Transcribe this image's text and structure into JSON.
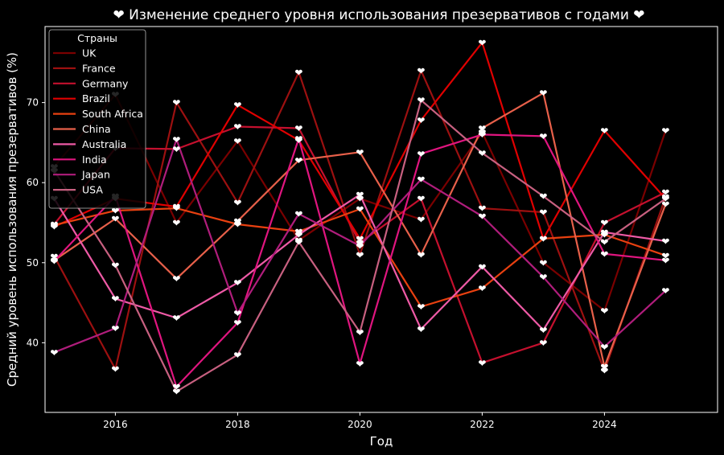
{
  "chart_data": {
    "type": "line",
    "title": "❤ Изменение среднего уровня использования презервативов с годами ❤",
    "xlabel": "Год",
    "ylabel": "Средний уровень использования презервативов (%)",
    "xlim": [
      2014.85,
      2025.85
    ],
    "ylim": [
      31.3,
      79.5
    ],
    "x_ticks": [
      2016,
      2018,
      2020,
      2022,
      2024
    ],
    "y_ticks": [
      40,
      50,
      60,
      70
    ],
    "grid": false,
    "marker": "❤",
    "marker_color": "#ffffff",
    "background": "#000000",
    "legend": {
      "title": "Страны",
      "position": "top-left"
    },
    "x": [
      2015,
      2016,
      2017,
      2018,
      2019,
      2020,
      2021,
      2022,
      2023,
      2024,
      2025
    ],
    "series": [
      {
        "name": "UK",
        "color": "#7a0000",
        "values": [
          62.0,
          71.0,
          55.0,
          65.2,
          52.8,
          58.0,
          55.4,
          66.3,
          50.0,
          44.0,
          66.5
        ]
      },
      {
        "name": "France",
        "color": "#9c1010",
        "values": [
          50.8,
          36.7,
          70.0,
          57.5,
          73.8,
          51.0,
          74.0,
          56.8,
          56.3,
          36.5,
          58.2
        ]
      },
      {
        "name": "Germany",
        "color": "#c4102e",
        "values": [
          54.8,
          64.3,
          64.2,
          67.0,
          66.8,
          52.5,
          58.0,
          37.5,
          40.0,
          55.0,
          58.8
        ]
      },
      {
        "name": "Brazil",
        "color": "#e00000",
        "values": [
          54.5,
          58.0,
          57.0,
          69.7,
          65.3,
          53.0,
          67.8,
          77.5,
          53.0,
          66.5,
          58.0
        ]
      },
      {
        "name": "South Africa",
        "color": "#e84010",
        "values": [
          54.7,
          56.5,
          56.8,
          54.8,
          53.9,
          56.7,
          44.5,
          46.8,
          53.0,
          53.5,
          50.9
        ]
      },
      {
        "name": "China",
        "color": "#e8604a",
        "values": [
          50.3,
          55.5,
          48.0,
          55.2,
          62.8,
          63.8,
          51.0,
          66.8,
          71.2,
          37.0,
          57.3
        ]
      },
      {
        "name": "Australia",
        "color": "#ee5aa6",
        "values": [
          58.0,
          45.5,
          43.1,
          47.5,
          53.5,
          58.5,
          41.7,
          49.5,
          41.6,
          53.8,
          52.7
        ]
      },
      {
        "name": "India",
        "color": "#e0157f",
        "values": [
          50.2,
          58.3,
          34.5,
          42.5,
          65.5,
          37.4,
          63.6,
          66.0,
          65.8,
          51.1,
          50.3
        ]
      },
      {
        "name": "Japan",
        "color": "#b01d7c",
        "values": [
          38.8,
          41.8,
          65.4,
          43.7,
          56.1,
          52.1,
          60.4,
          55.8,
          48.2,
          39.5,
          46.5
        ]
      },
      {
        "name": "USA",
        "color": "#c86080",
        "values": [
          61.5,
          49.7,
          33.9,
          38.5,
          52.6,
          41.3,
          70.3,
          63.7,
          58.3,
          52.6,
          58.0
        ]
      }
    ]
  }
}
